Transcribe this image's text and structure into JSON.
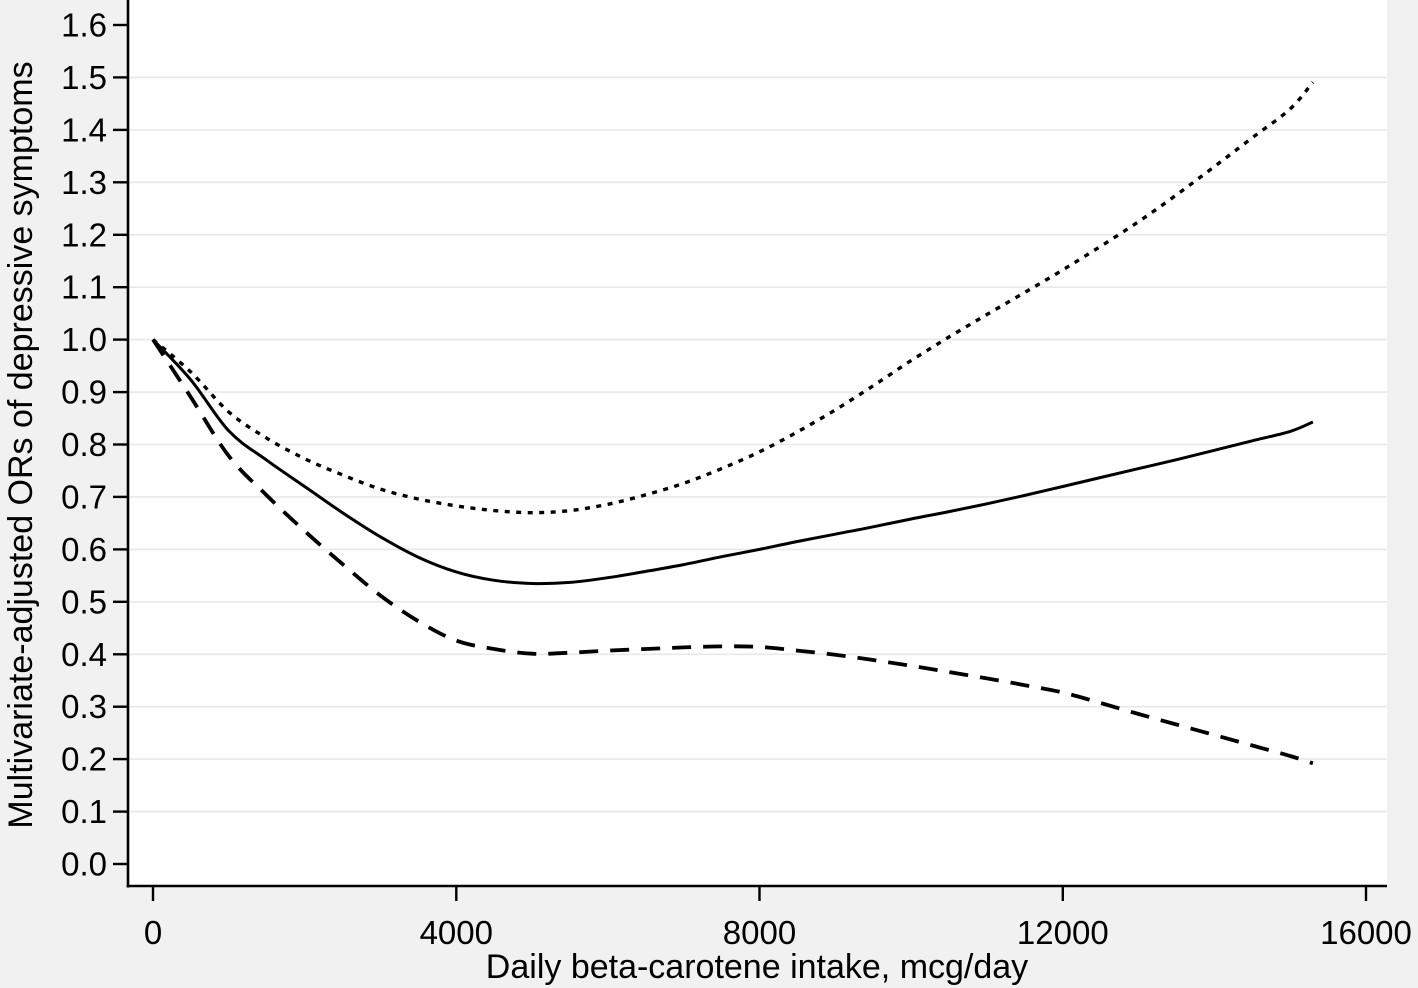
{
  "figure": {
    "background_color": "#f1f1f2",
    "plot_background_color": "#ffffff",
    "gridline_color": "#e8e8ea",
    "axis_color": "#000000",
    "text_color": "#000000"
  },
  "chart_data": {
    "type": "line",
    "title": "",
    "xlabel": "Daily beta-carotene intake, mcg/day",
    "ylabel": "Multivariate-adjusted ORs of depressive symptoms",
    "xlim": [
      0,
      16000
    ],
    "ylim": [
      0.0,
      1.6
    ],
    "x_ticks": [
      0,
      4000,
      8000,
      12000,
      16000
    ],
    "y_ticks": [
      0.0,
      0.1,
      0.2,
      0.3,
      0.4,
      0.5,
      0.6,
      0.7,
      0.8,
      0.9,
      1.0,
      1.1,
      1.2,
      1.3,
      1.4,
      1.5,
      1.6
    ],
    "grid": "horizontal-only",
    "legend": "none",
    "x": [
      0,
      500,
      1000,
      1500,
      2000,
      2500,
      3000,
      3500,
      4000,
      4500,
      5000,
      5500,
      6000,
      6500,
      7000,
      7500,
      8000,
      8500,
      9000,
      9500,
      10000,
      10500,
      11000,
      11500,
      12000,
      12500,
      13000,
      13500,
      14000,
      14500,
      15000,
      15300
    ],
    "series": [
      {
        "name": "solid",
        "line_style": "solid",
        "color": "#000000",
        "values": [
          1.0,
          0.923,
          0.826,
          0.77,
          0.72,
          0.67,
          0.624,
          0.585,
          0.557,
          0.541,
          0.535,
          0.537,
          0.546,
          0.558,
          0.571,
          0.586,
          0.6,
          0.615,
          0.629,
          0.643,
          0.658,
          0.672,
          0.687,
          0.703,
          0.72,
          0.737,
          0.754,
          0.771,
          0.789,
          0.807,
          0.825,
          0.843
        ]
      },
      {
        "name": "dotted",
        "line_style": "dotted",
        "color": "#000000",
        "values": [
          1.0,
          0.938,
          0.862,
          0.812,
          0.773,
          0.742,
          0.715,
          0.696,
          0.683,
          0.674,
          0.67,
          0.674,
          0.686,
          0.704,
          0.726,
          0.754,
          0.786,
          0.824,
          0.866,
          0.912,
          0.96,
          1.005,
          1.048,
          1.09,
          1.133,
          1.178,
          1.225,
          1.276,
          1.33,
          1.385,
          1.44,
          1.491
        ]
      },
      {
        "name": "dashed",
        "line_style": "dashed",
        "color": "#000000",
        "values": [
          1.0,
          0.89,
          0.778,
          0.703,
          0.635,
          0.572,
          0.512,
          0.463,
          0.426,
          0.41,
          0.401,
          0.403,
          0.407,
          0.41,
          0.413,
          0.415,
          0.414,
          0.407,
          0.399,
          0.389,
          0.378,
          0.366,
          0.354,
          0.341,
          0.327,
          0.307,
          0.286,
          0.266,
          0.246,
          0.226,
          0.206,
          0.192
        ]
      }
    ]
  }
}
